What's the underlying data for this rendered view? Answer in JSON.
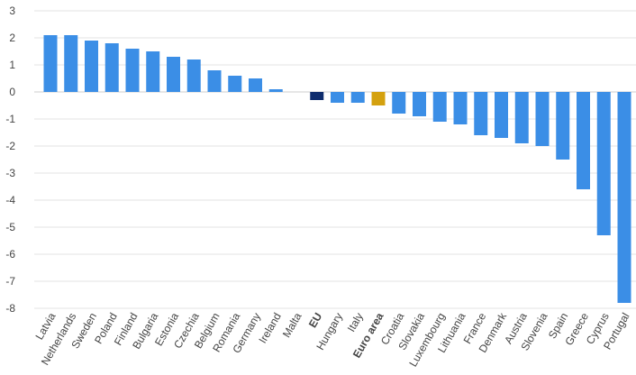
{
  "chart_data": {
    "type": "bar",
    "title": "",
    "xlabel": "",
    "ylabel": "",
    "ylim": [
      -8,
      3
    ],
    "yticks": [
      3,
      2,
      1,
      0,
      -1,
      -2,
      -3,
      -4,
      -5,
      -6,
      -7,
      -8
    ],
    "grid": true,
    "legend": "none",
    "categories": [
      "Latvia",
      "Netherlands",
      "Sweden",
      "Poland",
      "Finland",
      "Bulgaria",
      "Estonia",
      "Czechia",
      "Belgium",
      "Romania",
      "Germany",
      "Ireland",
      "Malta",
      "EU",
      "Hungary",
      "Italy",
      "Euro area",
      "Croatia",
      "Slovakia",
      "Luxembourg",
      "Lithuania",
      "France",
      "Denmark",
      "Austria",
      "Slovenia",
      "Spain",
      "Greece",
      "Cyprus",
      "Portugal"
    ],
    "values": [
      2.1,
      2.1,
      1.9,
      1.8,
      1.6,
      1.5,
      1.3,
      1.2,
      0.8,
      0.6,
      0.5,
      0.1,
      0.0,
      -0.3,
      -0.4,
      -0.4,
      -0.5,
      -0.8,
      -0.9,
      -1.1,
      -1.2,
      -1.6,
      -1.7,
      -1.9,
      -2.0,
      -2.5,
      -3.6,
      -5.3,
      -7.8
    ],
    "bold_categories": [
      "EU",
      "Euro area"
    ],
    "colors": {
      "default": "#3b8ee6",
      "EU": "#0f2d6e",
      "Euro area": "#d4a10f",
      "grid": "#e3e3e3",
      "zero_line": "#cccccc"
    }
  }
}
